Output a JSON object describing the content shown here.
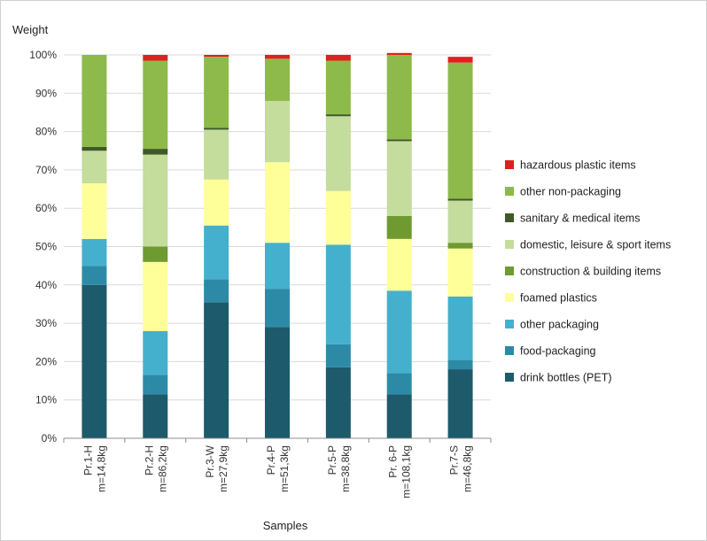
{
  "chart_data": {
    "type": "bar",
    "stacked": true,
    "ylabel": "Weight",
    "xlabel": "Samples",
    "ylim": [
      0,
      100
    ],
    "y_ticks": [
      "0%",
      "10%",
      "20%",
      "30%",
      "40%",
      "50%",
      "60%",
      "70%",
      "80%",
      "90%",
      "100%"
    ],
    "grid": true,
    "legend_position": "right",
    "categories": [
      {
        "line1": "Pr.1-H",
        "line2": "m=14,8kg"
      },
      {
        "line1": "Pr.2-H",
        "line2": "m=86,2kg"
      },
      {
        "line1": "Pr.3-W",
        "line2": "m=27,9kg"
      },
      {
        "line1": "Pr.4-P",
        "line2": "m=51,3kg"
      },
      {
        "line1": "Pr.5-P",
        "line2": "m=38,8kg"
      },
      {
        "line1": "Pr. 6-P",
        "line2": "m=108,1kg"
      },
      {
        "line1": "Pr.7-S",
        "line2": "m=46,8kg"
      }
    ],
    "series": [
      {
        "name": "drink bottles (PET)",
        "color": "#1d5a6b",
        "values": [
          40,
          11.5,
          35.5,
          29,
          18.5,
          11.5,
          18
        ]
      },
      {
        "name": "food-packaging",
        "color": "#2d8aa6",
        "values": [
          5,
          5,
          6,
          10,
          6,
          5.5,
          2.5
        ]
      },
      {
        "name": "other packaging",
        "color": "#45b0cd",
        "values": [
          7,
          11.5,
          14,
          12,
          26,
          21.5,
          16.5
        ]
      },
      {
        "name": "foamed plastics",
        "color": "#ffff99",
        "values": [
          14.5,
          18,
          12,
          21,
          14,
          13.5,
          12.5
        ]
      },
      {
        "name": "construction & building items",
        "color": "#6f9a32",
        "values": [
          0,
          4,
          0,
          0,
          0,
          6,
          1.5
        ]
      },
      {
        "name": "domestic, leisure & sport items",
        "color": "#c4dc9c",
        "values": [
          8.5,
          24,
          13,
          16,
          19.5,
          19.5,
          11
        ]
      },
      {
        "name": "sanitary & medical items",
        "color": "#3d5a27",
        "values": [
          1,
          1.5,
          0.5,
          0,
          0.5,
          0.5,
          0.5
        ]
      },
      {
        "name": "other non-packaging",
        "color": "#8dba4a",
        "values": [
          24,
          23,
          18.5,
          11,
          14,
          22,
          35.5
        ]
      },
      {
        "name": "hazardous plastic items",
        "color": "#e02020",
        "values": [
          0,
          1.5,
          0.5,
          1,
          1.5,
          0.5,
          1.5
        ]
      }
    ]
  }
}
